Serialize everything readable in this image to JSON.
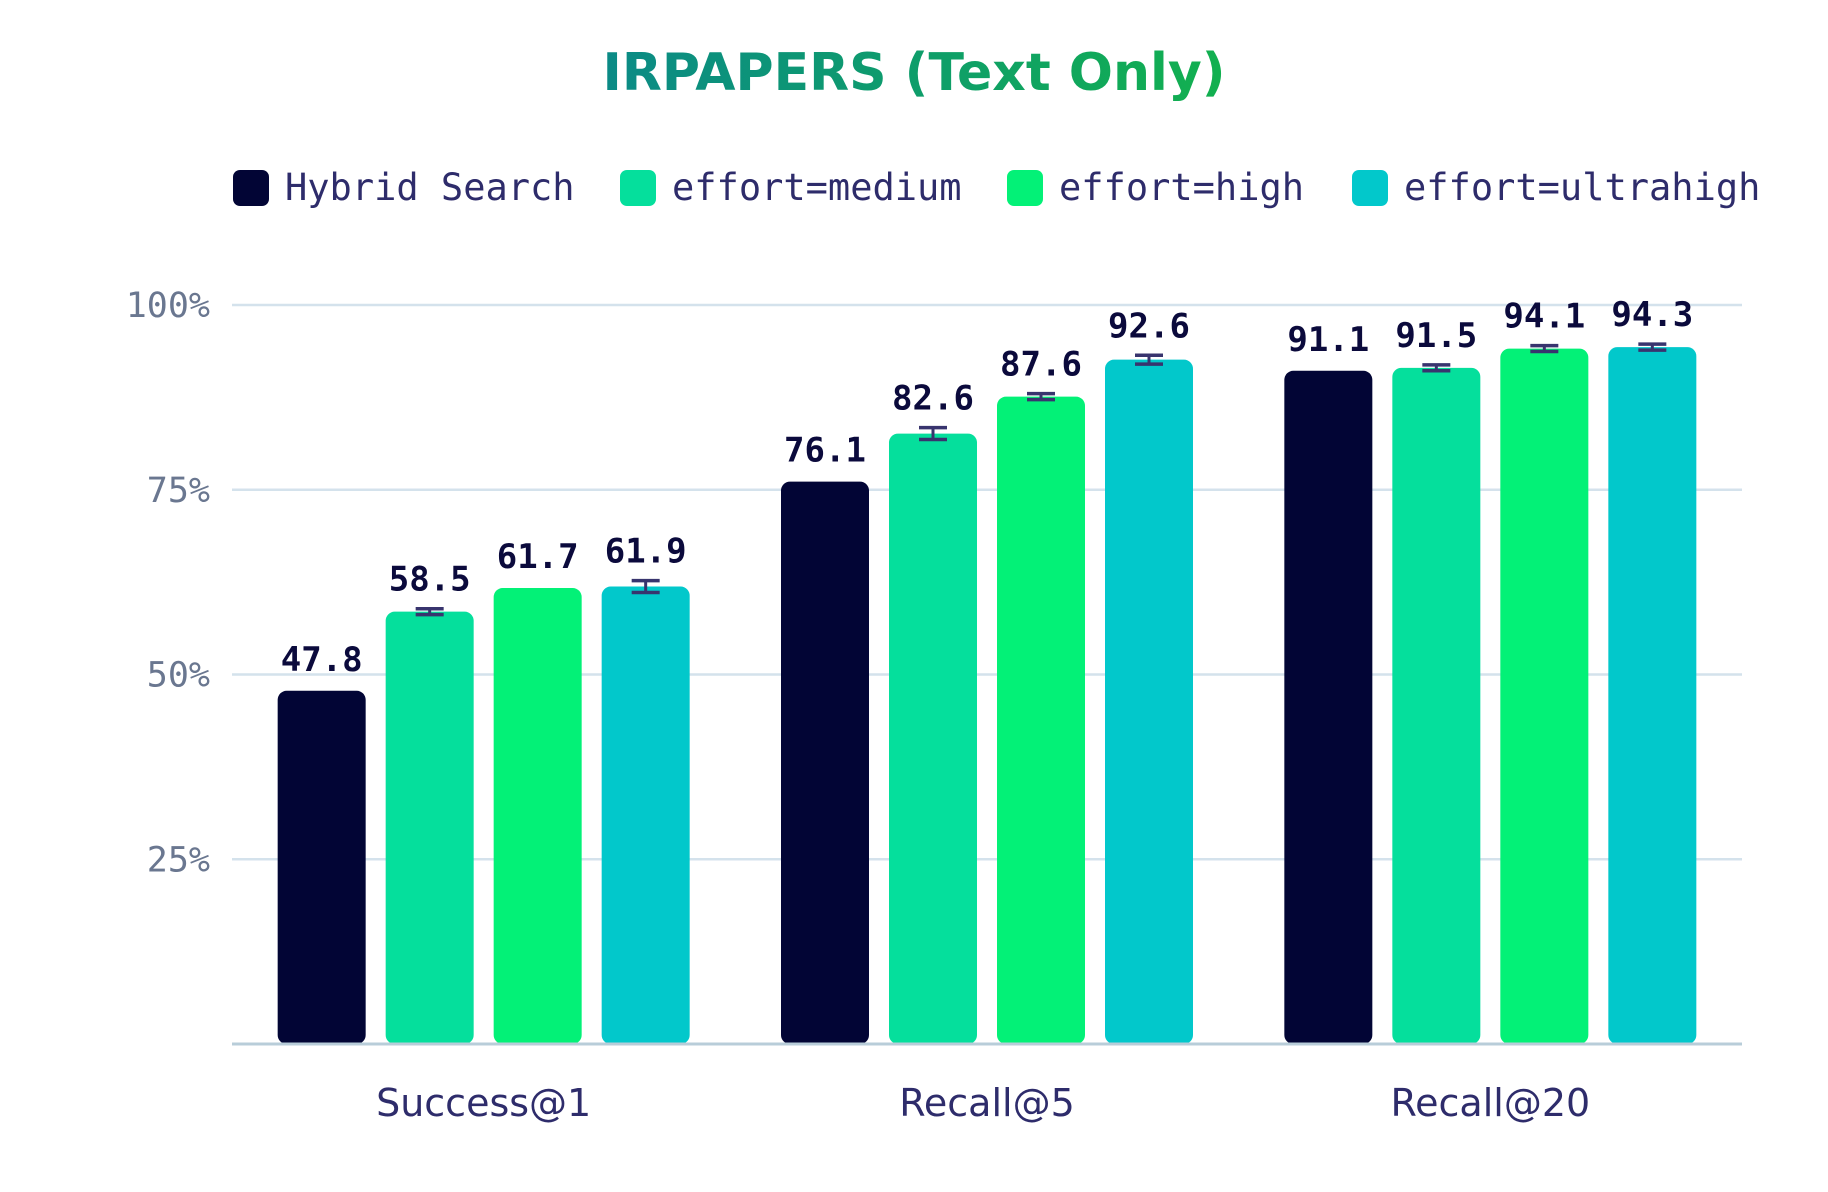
{
  "colors": {
    "title_gradient": [
      "#0b8a86",
      "#12b04f"
    ],
    "grid": "#d4e2ec",
    "axis": "#b8cdd9",
    "error_bar": "#38346e"
  },
  "chart_data": {
    "type": "bar",
    "title": "IRPAPERS (Text Only)",
    "categories": [
      "Success@1",
      "Recall@5",
      "Recall@20"
    ],
    "ylim": [
      0,
      100
    ],
    "yticks": [
      25,
      50,
      75,
      100
    ],
    "ytick_labels": [
      "25%",
      "50%",
      "75%",
      "100%"
    ],
    "grid": true,
    "legend_position": "top",
    "series": [
      {
        "name": "Hybrid Search",
        "color": "#020535",
        "values": [
          47.8,
          76.1,
          91.1
        ],
        "errors": [
          0,
          0,
          0
        ]
      },
      {
        "name": "effort=medium",
        "color": "#05df9c",
        "values": [
          58.5,
          82.6,
          91.5
        ],
        "errors": [
          0.4,
          0.8,
          0.4
        ]
      },
      {
        "name": "effort=high",
        "color": "#03f177",
        "values": [
          61.7,
          87.6,
          94.1
        ],
        "errors": [
          0,
          0.4,
          0.4
        ]
      },
      {
        "name": "effort=ultrahigh",
        "color": "#02c8cb",
        "values": [
          61.9,
          92.6,
          94.3
        ],
        "errors": [
          0.8,
          0.6,
          0.4
        ]
      }
    ]
  }
}
